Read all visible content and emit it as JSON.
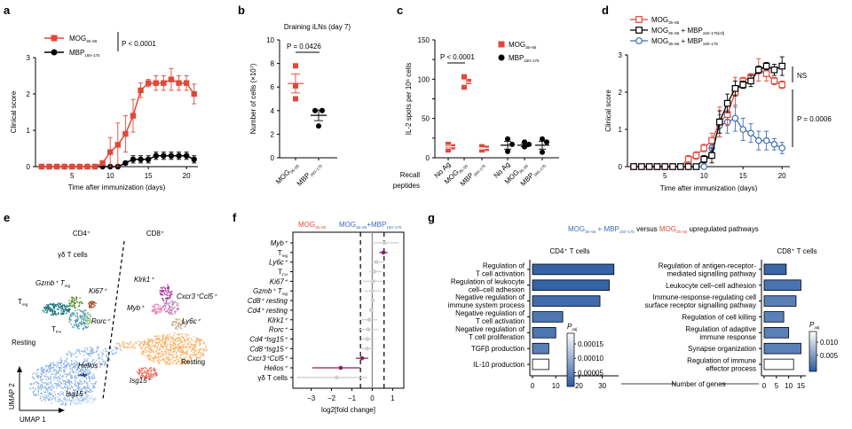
{
  "colors": {
    "red": "#e0483a",
    "black": "#000000",
    "blue": "#3d6cb5",
    "grey": "#cfcfcf",
    "purple": "#8b1e5e",
    "bar": "#2a5aa0",
    "axis": "#000000"
  },
  "chart_data": [
    {
      "panel": "a",
      "type": "line",
      "xlabel": "Time after immunization (days)",
      "ylabel": "Clinical score",
      "xlim": [
        0,
        21.5
      ],
      "ylim": [
        0,
        3
      ],
      "xticks": [
        5,
        10,
        15,
        20
      ],
      "yticks": [
        0,
        1,
        2,
        3
      ],
      "annotation": "P < 0.0001",
      "x": [
        1,
        2,
        3,
        4,
        5,
        6,
        7,
        8,
        9,
        10,
        11,
        12,
        13,
        14,
        15,
        16,
        17,
        18,
        19,
        20,
        21
      ],
      "series": [
        {
          "name": "MOG35–55",
          "label_main": "MOG",
          "label_sub": "35–55",
          "marker": "square",
          "color": "red",
          "values": [
            0,
            0,
            0,
            0,
            0,
            0,
            0,
            0,
            0.1,
            0.4,
            0.6,
            0.9,
            1.4,
            2.1,
            2.3,
            2.3,
            2.3,
            2.4,
            2.3,
            2.3,
            2.0
          ],
          "err": [
            0,
            0,
            0,
            0,
            0,
            0,
            0,
            0,
            0.05,
            0.4,
            0.6,
            0.5,
            0.45,
            0.2,
            0.1,
            0.2,
            0.2,
            0.3,
            0.2,
            0.2,
            0.27
          ]
        },
        {
          "name": "MBP160–175",
          "label_main": "MBP",
          "label_sub": "160–175",
          "marker": "circle",
          "color": "black",
          "values": [
            0,
            0,
            0,
            0,
            0,
            0,
            0,
            0,
            0,
            0,
            0,
            0.1,
            0.2,
            0.2,
            0.2,
            0.3,
            0.3,
            0.3,
            0.3,
            0.3,
            0.2
          ],
          "err": [
            0,
            0,
            0,
            0,
            0,
            0,
            0,
            0,
            0,
            0,
            0,
            0.05,
            0.1,
            0.1,
            0.1,
            0.1,
            0.1,
            0.1,
            0.1,
            0.1,
            0.1
          ]
        }
      ]
    },
    {
      "panel": "b",
      "type": "scatter",
      "title": "Draining iLNs (day 7)",
      "ylabel": "Number of cells (×10⁷)",
      "ylim": [
        0,
        10
      ],
      "yticks": [
        0,
        2,
        4,
        6,
        8,
        10
      ],
      "annotation": "P = 0.0426",
      "groups": [
        {
          "name": "MOG35–55",
          "label_main": "MOG",
          "label_sub": "35–55",
          "marker": "square",
          "color": "red",
          "points": [
            7.8,
            6.1,
            5.0
          ],
          "mean": 6.3,
          "sem": 0.8
        },
        {
          "name": "MBP160–175",
          "label_main": "MBP",
          "label_sub": "160–175",
          "marker": "circle",
          "color": "black",
          "points": [
            4.0,
            4.0,
            2.7
          ],
          "mean": 3.6,
          "sem": 0.45
        }
      ]
    },
    {
      "panel": "c",
      "type": "scatter",
      "ylabel": "IL-2 spots per 10⁶ cells",
      "ylim": [
        0,
        150
      ],
      "yticks": [
        0,
        50,
        100,
        150
      ],
      "annotation": "P < 0.0001",
      "xlabel": "Recall peptides",
      "legend": [
        {
          "label_main": "MOG",
          "label_sub": "35–55",
          "marker": "square",
          "color": "red"
        },
        {
          "label_main": "MBP",
          "label_sub": "160–175",
          "marker": "circle",
          "color": "black"
        }
      ],
      "categories": [
        {
          "label_main": "No Ag",
          "label_sub": "",
          "group": "MOG35–55",
          "marker": "square",
          "color": "red",
          "points": [
            17,
            14,
            10
          ],
          "mean": 14,
          "sem": 2
        },
        {
          "label_main": "MOG",
          "label_sub": "35–55",
          "group": "MOG35–55",
          "marker": "square",
          "color": "red",
          "points": [
            103,
            97,
            90
          ],
          "mean": 96,
          "sem": 3
        },
        {
          "label_main": "MBP",
          "label_sub": "160–175",
          "group": "MOG35–55",
          "marker": "square",
          "color": "red",
          "points": [
            14,
            12,
            10
          ],
          "mean": 12,
          "sem": 1
        },
        {
          "label_main": "No Ag",
          "label_sub": "",
          "group": "MBP160–175",
          "marker": "circle",
          "color": "black",
          "points": [
            24,
            17,
            8
          ],
          "mean": 16,
          "sem": 5
        },
        {
          "label_main": "MOG",
          "label_sub": "35–55",
          "group": "MBP160–175",
          "marker": "circle",
          "color": "black",
          "points": [
            20,
            17,
            14
          ],
          "mean": 16,
          "sem": 2
        },
        {
          "label_main": "MBP",
          "label_sub": "160–175",
          "group": "MBP160–175",
          "marker": "circle",
          "color": "black",
          "points": [
            24,
            20,
            7
          ],
          "mean": 16,
          "sem": 5
        }
      ]
    },
    {
      "panel": "d",
      "type": "line",
      "xlabel": "Time after immunization (days)",
      "ylabel": "Clinical score",
      "xlim": [
        0,
        21
      ],
      "ylim": [
        0,
        3
      ],
      "xticks": [
        5,
        10,
        15,
        20
      ],
      "yticks": [
        0,
        1,
        2,
        3
      ],
      "annotations": [
        "NS",
        "P = 0.0006"
      ],
      "x": [
        1,
        2,
        3,
        4,
        5,
        6,
        7,
        8,
        9,
        10,
        11,
        12,
        13,
        14,
        15,
        16,
        17,
        18,
        19,
        20
      ],
      "series": [
        {
          "name": "MOG35–55",
          "label": "MOG35–55",
          "marker": "open-square",
          "color": "red",
          "values": [
            0,
            0,
            0,
            0,
            0,
            0,
            0,
            0.2,
            0.3,
            0.5,
            0.7,
            1.2,
            1.4,
            2.0,
            2.3,
            2.4,
            2.6,
            2.5,
            2.3,
            2.2
          ],
          "err": [
            0,
            0,
            0,
            0,
            0,
            0,
            0,
            0.1,
            0.1,
            0.1,
            0.2,
            0.4,
            0.3,
            0.4,
            0.1,
            0.1,
            0.3,
            0.2,
            0.1,
            0.1
          ]
        },
        {
          "name": "MOG35–55 + MBP160–175(ctrl)",
          "label": "MOG35–55 + MBP160–175(ctl)",
          "marker": "open-square",
          "color": "black",
          "values": [
            0,
            0,
            0,
            0,
            0,
            0,
            0,
            0,
            0,
            0.2,
            0.3,
            1.2,
            1.7,
            2.1,
            2.2,
            2.3,
            2.6,
            2.7,
            2.6,
            2.7
          ],
          "err": [
            0,
            0,
            0,
            0,
            0,
            0,
            0,
            0,
            0,
            0.1,
            0.2,
            0.3,
            0.25,
            0.2,
            0.1,
            0.15,
            0.1,
            0.1,
            0.15,
            0.25
          ]
        },
        {
          "name": "MOG35–55 + MBP160–175",
          "label": "MOG35–55 + MBP160–175",
          "marker": "open-circle",
          "color": "blue",
          "values": [
            0,
            0,
            0,
            0,
            0,
            0,
            0,
            0,
            0,
            0,
            0.5,
            1.1,
            1.2,
            1.3,
            1.0,
            0.9,
            0.7,
            0.7,
            0.6,
            0.5
          ],
          "err": [
            0,
            0,
            0,
            0,
            0,
            0,
            0,
            0,
            0,
            0,
            0.1,
            0.3,
            0.3,
            0.35,
            0.3,
            0.25,
            0.25,
            0.25,
            0.15,
            0.15
          ]
        }
      ]
    },
    {
      "panel": "e",
      "type": "scatter",
      "xlabel": "UMAP 1",
      "ylabel": "UMAP 2",
      "group_labels": [
        "CD4⁺",
        "CD8⁺"
      ],
      "clusters": [
        {
          "label": "Resting (CD4)",
          "color": "#8fb4e3"
        },
        {
          "label": "Treg",
          "color": "#15707a"
        },
        {
          "label": "Gzmb+ Treg",
          "color": "#5b8f2e"
        },
        {
          "label": "Ki67+",
          "color": "#a9502a"
        },
        {
          "label": "Rorc+",
          "color": "#b6d98a"
        },
        {
          "label": "TFH",
          "color": "#4f9ab0"
        },
        {
          "label": "Helios+",
          "color": "#1f3d8a"
        },
        {
          "label": "Isg15+ (CD4)",
          "color": "#c6dcf2"
        },
        {
          "label": "Resting (CD8)",
          "color": "#f7b46a"
        },
        {
          "label": "Klrk1+",
          "color": "#a8339a"
        },
        {
          "label": "Cxcr3+Ccl5+",
          "color": "#c580b8"
        },
        {
          "label": "Myb+",
          "color": "#e586b8"
        },
        {
          "label": "Ly6c+",
          "color": "#c9b08e"
        },
        {
          "label": "Isg15+ (CD8)",
          "color": "#ec6b5e"
        }
      ]
    },
    {
      "panel": "f",
      "type": "scatter",
      "xlabel": "log2[fold change]",
      "xlim": [
        -3.9,
        1.55
      ],
      "xticks": [
        -3,
        -2,
        -1,
        0,
        1
      ],
      "thresholds": [
        -0.58,
        0.58
      ],
      "header_left": "MOG35–55",
      "header_right": "MOG35–55+MBP160–175",
      "rows": [
        {
          "label": "Myb⁺",
          "value": 0.6,
          "lo": -0.05,
          "hi": 1.3,
          "sig": false
        },
        {
          "label": "Treg",
          "value": 0.55,
          "lo": 0.35,
          "hi": 0.75,
          "sig": true
        },
        {
          "label": "Ly6c⁺",
          "value": 0.2,
          "lo": -0.05,
          "hi": 0.6,
          "sig": false
        },
        {
          "label": "TFH",
          "value": 0.1,
          "lo": -0.15,
          "hi": 0.45,
          "sig": false
        },
        {
          "label": "Ki67⁺",
          "value": 0.05,
          "lo": -0.45,
          "hi": 0.55,
          "sig": false
        },
        {
          "label": "Gzmb⁺ Treg",
          "value": 0.0,
          "lo": -0.4,
          "hi": 0.4,
          "sig": false
        },
        {
          "label": "Cd8⁺ resting",
          "value": 0.02,
          "lo": -0.05,
          "hi": 0.1,
          "sig": false
        },
        {
          "label": "Cd4⁺ resting",
          "value": -0.05,
          "lo": -0.12,
          "hi": 0.02,
          "sig": false
        },
        {
          "label": "Klrk1⁺",
          "value": -0.15,
          "lo": -0.55,
          "hi": 0.25,
          "sig": false
        },
        {
          "label": "Rorc⁺",
          "value": -0.2,
          "lo": -0.7,
          "hi": 0.3,
          "sig": false
        },
        {
          "label": "Cd4⁺Isg15⁺",
          "value": -0.25,
          "lo": -0.55,
          "hi": 0.1,
          "sig": false
        },
        {
          "label": "Cd8⁺Isg15⁺",
          "value": -0.25,
          "lo": -0.55,
          "hi": 0.1,
          "sig": false
        },
        {
          "label": "Cxcr3⁺Ccl5⁺",
          "value": -0.5,
          "lo": -0.8,
          "hi": -0.2,
          "sig": true
        },
        {
          "label": "Helios⁺",
          "value": -1.55,
          "lo": -2.95,
          "hi": -0.6,
          "sig": true
        },
        {
          "label": "γδ T cells",
          "value": -1.75,
          "lo": -3.7,
          "hi": -0.25,
          "sig": false
        }
      ]
    },
    {
      "panel": "g",
      "type": "bar",
      "title": "MOG35–55 + MBP160–175 versus MOG35–55 upregulated pathways",
      "xlabel": "Number of genes",
      "subplots": [
        {
          "title": "CD4⁺ T cells",
          "xlim": [
            0,
            37
          ],
          "xticks": [
            0,
            10,
            20,
            30
          ],
          "legend_title": "Padj",
          "legend_ticks": [
            "0.00015",
            "0.00010",
            "0.00005"
          ],
          "bars": [
            {
              "label": [
                "Regulation of",
                "T cell activation"
              ],
              "value": 35,
              "padj": 1e-05
            },
            {
              "label": [
                "Regulation of leukocyte",
                "cell–cell adhesion"
              ],
              "value": 33,
              "padj": 1e-05
            },
            {
              "label": [
                "Negative regulation of",
                "immune system process"
              ],
              "value": 29,
              "padj": 2e-05
            },
            {
              "label": [
                "Negative regulation of",
                "T cell activation"
              ],
              "value": 13,
              "padj": 3e-05
            },
            {
              "label": [
                "Negative regulation of",
                "T cell proliferation"
              ],
              "value": 10,
              "padj": 3e-05
            },
            {
              "label": [
                "TGFβ production"
              ],
              "value": 7,
              "padj": 4e-05
            },
            {
              "label": [
                "IL-10 production"
              ],
              "value": 7,
              "padj": 0.00018
            }
          ]
        },
        {
          "title": "CD8⁺ T cells",
          "xlim": [
            0,
            17
          ],
          "xticks": [
            0,
            5,
            10,
            15
          ],
          "legend_title": "Padj",
          "legend_ticks": [
            "0.010",
            "0.005"
          ],
          "bars": [
            {
              "label": [
                "Regulation of antigen-receptor-",
                "mediated signalling pathway"
              ],
              "value": 9,
              "padj": 0.001
            },
            {
              "label": [
                "Leukocyte cell–cell adhesion"
              ],
              "value": 15,
              "padj": 0.002
            },
            {
              "label": [
                "Immune-response-regulating cell",
                "surface receptor signalling pathway"
              ],
              "value": 13,
              "padj": 0.003
            },
            {
              "label": [
                "Regulation of cell killing"
              ],
              "value": 8,
              "padj": 0.003
            },
            {
              "label": [
                "Regulation of adaptive",
                "immune response"
              ],
              "value": 10,
              "padj": 0.003
            },
            {
              "label": [
                "Synapse organization"
              ],
              "value": 15,
              "padj": 0.003
            },
            {
              "label": [
                "Regulation of immune",
                "effector process"
              ],
              "value": 12,
              "padj": 0.013
            }
          ]
        }
      ]
    }
  ],
  "panel_letters": {
    "a": "a",
    "b": "b",
    "c": "c",
    "d": "d",
    "e": "e",
    "f": "f",
    "g": "g"
  },
  "umap_labels": {
    "gd": "γδ T cells",
    "gzmb": "Gzmb⁺ T",
    "reg": "reg",
    "ki67": "Ki67⁺",
    "treg_t": "T",
    "treg_s": "reg",
    "rorc": "Rorc⁺",
    "tfh_t": "T",
    "tfh_s": "FH",
    "resting4": "Resting",
    "helios": "Helios⁺",
    "isg4": "Isg15⁺",
    "klrk": "Klrk1⁺",
    "cxcr": "Cxcr3⁺Ccl5⁺",
    "myb": "Myb⁺",
    "ly6c": "Ly6c⁺",
    "resting8": "Resting",
    "isg8": "Isg15⁺"
  },
  "g_title_parts": {
    "mog": "MOG",
    "mog_sub": "35–55",
    "plus": " + MBP",
    "mbp_sub": "160–175",
    "versus": " versus ",
    "mog2": "MOG",
    "mog2_sub": "35–55",
    "tail": " upregulated pathways"
  }
}
